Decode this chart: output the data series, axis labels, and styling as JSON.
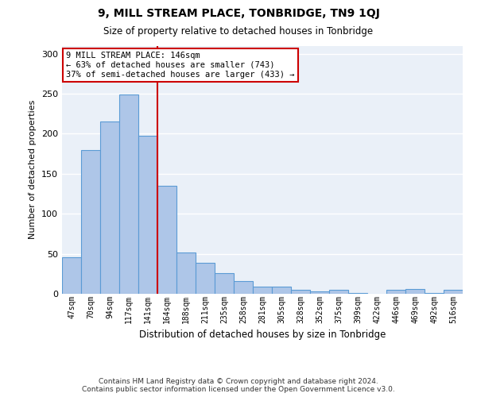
{
  "title": "9, MILL STREAM PLACE, TONBRIDGE, TN9 1QJ",
  "subtitle": "Size of property relative to detached houses in Tonbridge",
  "xlabel": "Distribution of detached houses by size in Tonbridge",
  "ylabel": "Number of detached properties",
  "categories": [
    "47sqm",
    "70sqm",
    "94sqm",
    "117sqm",
    "141sqm",
    "164sqm",
    "188sqm",
    "211sqm",
    "235sqm",
    "258sqm",
    "281sqm",
    "305sqm",
    "328sqm",
    "352sqm",
    "375sqm",
    "399sqm",
    "422sqm",
    "446sqm",
    "469sqm",
    "492sqm",
    "516sqm"
  ],
  "bar_heights": [
    46,
    180,
    215,
    249,
    197,
    135,
    52,
    39,
    26,
    16,
    9,
    9,
    5,
    3,
    5,
    1,
    0,
    5,
    6,
    1,
    5
  ],
  "bar_color": "#aec6e8",
  "bar_edge_color": "#5b9bd5",
  "bg_color": "#eaf0f8",
  "vline_color": "#cc0000",
  "vline_x_idx": 4.5,
  "annotation_text": "9 MILL STREAM PLACE: 146sqm\n← 63% of detached houses are smaller (743)\n37% of semi-detached houses are larger (433) →",
  "annotation_box_edgecolor": "#cc0000",
  "ylim": [
    0,
    310
  ],
  "yticks": [
    0,
    50,
    100,
    150,
    200,
    250,
    300
  ],
  "footer_line1": "Contains HM Land Registry data © Crown copyright and database right 2024.",
  "footer_line2": "Contains public sector information licensed under the Open Government Licence v3.0."
}
